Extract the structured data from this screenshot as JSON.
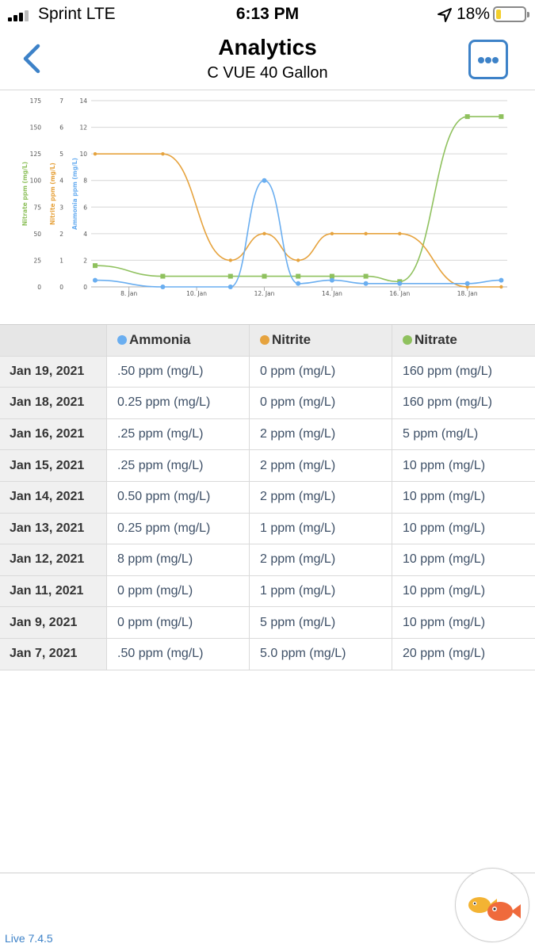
{
  "status_bar": {
    "carrier": "Sprint LTE",
    "time": "6:13 PM",
    "battery_pct": "18%",
    "battery_level": 0.18,
    "icons": [
      "signal-icon",
      "location-arrow-icon",
      "battery-icon"
    ]
  },
  "nav": {
    "title": "Analytics",
    "subtitle": "C VUE 40 Gallon",
    "back_icon": "chevron-left-icon",
    "more_icon": "more-icon",
    "accent": "#3d82c8"
  },
  "chart_data": {
    "type": "line",
    "x": [
      "Jan 7",
      "Jan 9",
      "Jan 11",
      "Jan 12",
      "Jan 13",
      "Jan 14",
      "Jan 15",
      "Jan 16",
      "Jan 18",
      "Jan 19"
    ],
    "x_ticks": [
      "8. Jan",
      "10. Jan",
      "12. Jan",
      "14. Jan",
      "16. Jan",
      "18. Jan"
    ],
    "series": [
      {
        "name": "Nitrate",
        "axis_label": "Nitrate ppm (mg/L)",
        "color": "#8fc15e",
        "ylim": [
          0,
          175
        ],
        "ticks": [
          "0",
          "25",
          "50",
          "75",
          "100",
          "125",
          "150",
          "175"
        ],
        "values": [
          20,
          10,
          10,
          10,
          10,
          10,
          10,
          5,
          160,
          160
        ]
      },
      {
        "name": "Nitrite",
        "axis_label": "Nitrite ppm (mg/L)",
        "color": "#e6a33e",
        "ylim": [
          0,
          7
        ],
        "ticks": [
          "0",
          "1",
          "2",
          "3",
          "4",
          "5",
          "6",
          "7"
        ],
        "values": [
          5,
          5,
          1,
          2,
          1,
          2,
          2,
          2,
          0,
          0
        ]
      },
      {
        "name": "Ammonia",
        "axis_label": "Ammonia ppm (mg/L)",
        "color": "#6aaef0",
        "ylim": [
          0,
          14
        ],
        "ticks": [
          "0",
          "2",
          "4",
          "6",
          "8",
          "10",
          "12",
          "14"
        ],
        "values": [
          0.5,
          0,
          0,
          8,
          0.25,
          0.5,
          0.25,
          0.25,
          0.25,
          0.5
        ]
      }
    ],
    "grid": true
  },
  "table": {
    "headers": [
      "",
      "Ammonia",
      "Nitrite",
      "Nitrate"
    ],
    "header_colors": [
      "",
      "#6aaef0",
      "#e6a33e",
      "#8fc15e"
    ],
    "rows": [
      {
        "date": "Jan 19, 2021",
        "ammonia": ".50 ppm (mg/L)",
        "nitrite": "0 ppm (mg/L)",
        "nitrate": "160 ppm (mg/L)"
      },
      {
        "date": "Jan 18, 2021",
        "ammonia": "0.25 ppm (mg/L)",
        "nitrite": "0 ppm (mg/L)",
        "nitrate": "160 ppm (mg/L)"
      },
      {
        "date": "Jan 16, 2021",
        "ammonia": ".25 ppm (mg/L)",
        "nitrite": "2 ppm (mg/L)",
        "nitrate": "5 ppm (mg/L)"
      },
      {
        "date": "Jan 15, 2021",
        "ammonia": ".25 ppm (mg/L)",
        "nitrite": "2 ppm (mg/L)",
        "nitrate": "10 ppm (mg/L)"
      },
      {
        "date": "Jan 14, 2021",
        "ammonia": "0.50 ppm (mg/L)",
        "nitrite": "2 ppm (mg/L)",
        "nitrate": "10 ppm (mg/L)"
      },
      {
        "date": "Jan 13, 2021",
        "ammonia": "0.25 ppm (mg/L)",
        "nitrite": "1 ppm (mg/L)",
        "nitrate": "10 ppm (mg/L)"
      },
      {
        "date": "Jan 12, 2021",
        "ammonia": "8 ppm (mg/L)",
        "nitrite": "2 ppm (mg/L)",
        "nitrate": "10 ppm (mg/L)"
      },
      {
        "date": "Jan 11, 2021",
        "ammonia": "0 ppm (mg/L)",
        "nitrite": "1 ppm (mg/L)",
        "nitrate": "10 ppm (mg/L)"
      },
      {
        "date": "Jan 9, 2021",
        "ammonia": "0 ppm (mg/L)",
        "nitrite": "5 ppm (mg/L)",
        "nitrate": "10 ppm (mg/L)"
      },
      {
        "date": "Jan 7, 2021",
        "ammonia": ".50 ppm (mg/L)",
        "nitrite": "5.0 ppm (mg/L)",
        "nitrate": "20 ppm (mg/L)"
      }
    ]
  },
  "footer": {
    "version": "Live 7.4.5",
    "fab_icon": "fish-logo-icon"
  }
}
